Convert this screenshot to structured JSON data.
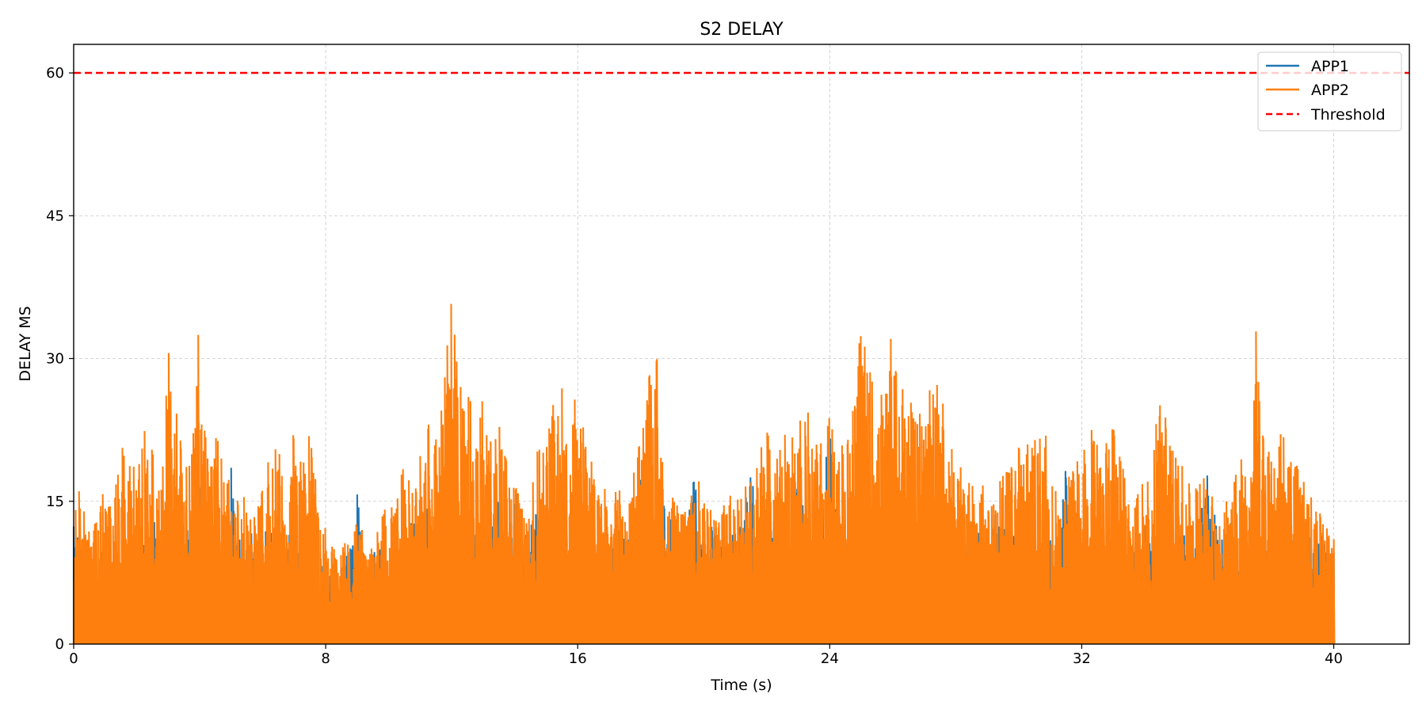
{
  "chart_data": {
    "type": "line",
    "title": "S2 DELAY",
    "xlabel": "Time (s)",
    "ylabel": "DELAY MS",
    "xlim": [
      0,
      42.4
    ],
    "ylim": [
      0,
      63
    ],
    "xticks": [
      0,
      8,
      16,
      24,
      32,
      40
    ],
    "yticks": [
      0,
      15,
      30,
      45,
      60
    ],
    "grid": true,
    "legend_position": "top-right",
    "threshold": {
      "name": "Threshold",
      "value": 60,
      "color": "#ff0000",
      "style": "dashed"
    },
    "series": [
      {
        "name": "APP1",
        "color": "#1f77b4",
        "x": [
          0.0,
          0.25,
          0.5,
          0.75,
          1.0,
          1.25,
          1.5,
          1.75,
          2.0,
          2.25,
          2.5,
          2.75,
          3.0,
          3.25,
          3.5,
          3.75,
          4.0,
          4.25,
          4.5,
          4.75,
          5.0,
          5.25,
          5.5,
          5.75,
          6.0,
          6.25,
          6.5,
          6.75,
          7.0,
          7.25,
          7.5,
          7.75,
          8.0,
          8.25,
          8.5,
          8.75,
          9.0,
          9.25,
          9.5,
          9.75,
          10.0,
          10.25,
          10.5,
          10.75,
          11.0,
          11.25,
          11.5,
          11.75,
          12.0,
          12.25,
          12.5,
          12.75,
          13.0,
          13.25,
          13.5,
          13.75,
          14.0,
          14.25,
          14.5,
          14.75,
          15.0,
          15.25,
          15.5,
          15.75,
          16.0,
          16.25,
          16.5,
          16.75,
          17.0,
          17.25,
          17.5,
          17.75,
          18.0,
          18.25,
          18.5,
          18.75,
          19.0,
          19.25,
          19.5,
          19.75,
          20.0,
          20.25,
          20.5,
          20.75,
          21.0,
          21.25,
          21.5,
          21.75,
          22.0,
          22.25,
          22.5,
          22.75,
          23.0,
          23.25,
          23.5,
          23.75,
          24.0,
          24.25,
          24.5,
          24.75,
          25.0,
          25.25,
          25.5,
          25.75,
          26.0,
          26.25,
          26.5,
          26.75,
          27.0,
          27.25,
          27.5,
          27.75,
          28.0,
          28.25,
          28.5,
          28.75,
          29.0,
          29.25,
          29.5,
          29.75,
          30.0,
          30.25,
          30.5,
          30.75,
          31.0,
          31.25,
          31.5,
          31.75,
          32.0,
          32.25,
          32.5,
          32.75,
          33.0,
          33.25,
          33.5,
          33.75,
          34.0,
          34.25,
          34.5,
          34.75,
          35.0,
          35.25,
          35.5,
          35.75,
          36.0,
          36.25,
          36.5,
          36.75,
          37.0,
          37.25,
          37.5,
          37.75,
          38.0,
          38.25,
          38.5,
          38.75,
          39.0,
          39.25,
          39.5,
          39.75,
          40.0
        ],
        "y": [
          14,
          10,
          12,
          6,
          13,
          9,
          10,
          15,
          12,
          11,
          16,
          9,
          13,
          11,
          14,
          12,
          18,
          14,
          13,
          9,
          19,
          12,
          11,
          13,
          12,
          13,
          9,
          11,
          13,
          10,
          7,
          9,
          9,
          8,
          9,
          10,
          16,
          9,
          10,
          11,
          8,
          9,
          11,
          13,
          12,
          15,
          13,
          16,
          12,
          14,
          13,
          12,
          11,
          12,
          16,
          12,
          18,
          11,
          13,
          14,
          11,
          12,
          13,
          14,
          9,
          12,
          13,
          11,
          10,
          13,
          11,
          12,
          18,
          12,
          10,
          16,
          13,
          10,
          14,
          19,
          11,
          13,
          12,
          11,
          12,
          15,
          19,
          13,
          12,
          14,
          11,
          12,
          18,
          14,
          12,
          16,
          23,
          14,
          12,
          12,
          14,
          13,
          12,
          13,
          11,
          16,
          13,
          12,
          13,
          14,
          10,
          12,
          13,
          11,
          10,
          12,
          11,
          14,
          12,
          13,
          15,
          12,
          10,
          13,
          11,
          12,
          19,
          13,
          14,
          12,
          14,
          13,
          10,
          11,
          12,
          11,
          13,
          12,
          11,
          14,
          11,
          12,
          10,
          14,
          18,
          13,
          11,
          13,
          8,
          10,
          12,
          16,
          11,
          12,
          10,
          13,
          11,
          12,
          12,
          12,
          10
        ]
      },
      {
        "name": "APP2",
        "color": "#ff7f0e",
        "x": [
          0.0,
          0.25,
          0.5,
          0.75,
          1.0,
          1.25,
          1.5,
          1.75,
          2.0,
          2.25,
          2.5,
          2.75,
          3.0,
          3.25,
          3.5,
          3.75,
          4.0,
          4.25,
          4.5,
          4.75,
          5.0,
          5.25,
          5.5,
          5.75,
          6.0,
          6.25,
          6.5,
          6.75,
          7.0,
          7.25,
          7.5,
          7.75,
          8.0,
          8.25,
          8.5,
          8.75,
          9.0,
          9.25,
          9.5,
          9.75,
          10.0,
          10.25,
          10.5,
          10.75,
          11.0,
          11.25,
          11.5,
          11.75,
          12.0,
          12.25,
          12.5,
          12.75,
          13.0,
          13.25,
          13.5,
          13.75,
          14.0,
          14.25,
          14.5,
          14.75,
          15.0,
          15.25,
          15.5,
          15.75,
          16.0,
          16.25,
          16.5,
          16.75,
          17.0,
          17.25,
          17.5,
          17.75,
          18.0,
          18.25,
          18.5,
          18.75,
          19.0,
          19.25,
          19.5,
          19.75,
          20.0,
          20.25,
          20.5,
          20.75,
          21.0,
          21.25,
          21.5,
          21.75,
          22.0,
          22.25,
          22.5,
          22.75,
          23.0,
          23.25,
          23.5,
          23.75,
          24.0,
          24.25,
          24.5,
          24.75,
          25.0,
          25.25,
          25.5,
          25.75,
          26.0,
          26.25,
          26.5,
          26.75,
          27.0,
          27.25,
          27.5,
          27.75,
          28.0,
          28.25,
          28.5,
          28.75,
          29.0,
          29.25,
          29.5,
          29.75,
          30.0,
          30.25,
          30.5,
          30.75,
          31.0,
          31.25,
          31.5,
          31.75,
          32.0,
          32.25,
          32.5,
          32.75,
          33.0,
          33.25,
          33.5,
          33.75,
          34.0,
          34.25,
          34.5,
          34.75,
          35.0,
          35.25,
          35.5,
          35.75,
          36.0,
          36.25,
          36.5,
          36.75,
          37.0,
          37.25,
          37.5,
          37.75,
          38.0,
          38.25,
          38.5,
          38.75,
          39.0,
          39.25,
          39.5,
          39.75,
          40.0
        ],
        "y": [
          18,
          16,
          12,
          13,
          17,
          15,
          21,
          19,
          20,
          24,
          22,
          18,
          31,
          25,
          21,
          23,
          35,
          24,
          22,
          20,
          17,
          15,
          16,
          14,
          18,
          20,
          21,
          16,
          23,
          19,
          24,
          16,
          12,
          11,
          10,
          12,
          13,
          12,
          11,
          15,
          14,
          16,
          19,
          17,
          20,
          24,
          22,
          27,
          38,
          30,
          28,
          23,
          26,
          21,
          25,
          19,
          17,
          15,
          16,
          22,
          24,
          26,
          28,
          18,
          32,
          22,
          21,
          16,
          18,
          17,
          15,
          19,
          22,
          28,
          33,
          17,
          16,
          15,
          14,
          18,
          16,
          15,
          14,
          16,
          15,
          18,
          17,
          20,
          24,
          21,
          22,
          24,
          23,
          26,
          22,
          21,
          24,
          23,
          22,
          25,
          34,
          29,
          26,
          27,
          34,
          28,
          26,
          25,
          24,
          29,
          28,
          22,
          20,
          18,
          19,
          18,
          17,
          16,
          18,
          20,
          22,
          21,
          23,
          26,
          17,
          16,
          17,
          19,
          21,
          23,
          22,
          22,
          23,
          19,
          17,
          16,
          18,
          21,
          26,
          23,
          21,
          19,
          16,
          18,
          17,
          16,
          15,
          17,
          20,
          22,
          35,
          26,
          23,
          27,
          21,
          20,
          18,
          17,
          15,
          13,
          11
        ]
      }
    ]
  }
}
